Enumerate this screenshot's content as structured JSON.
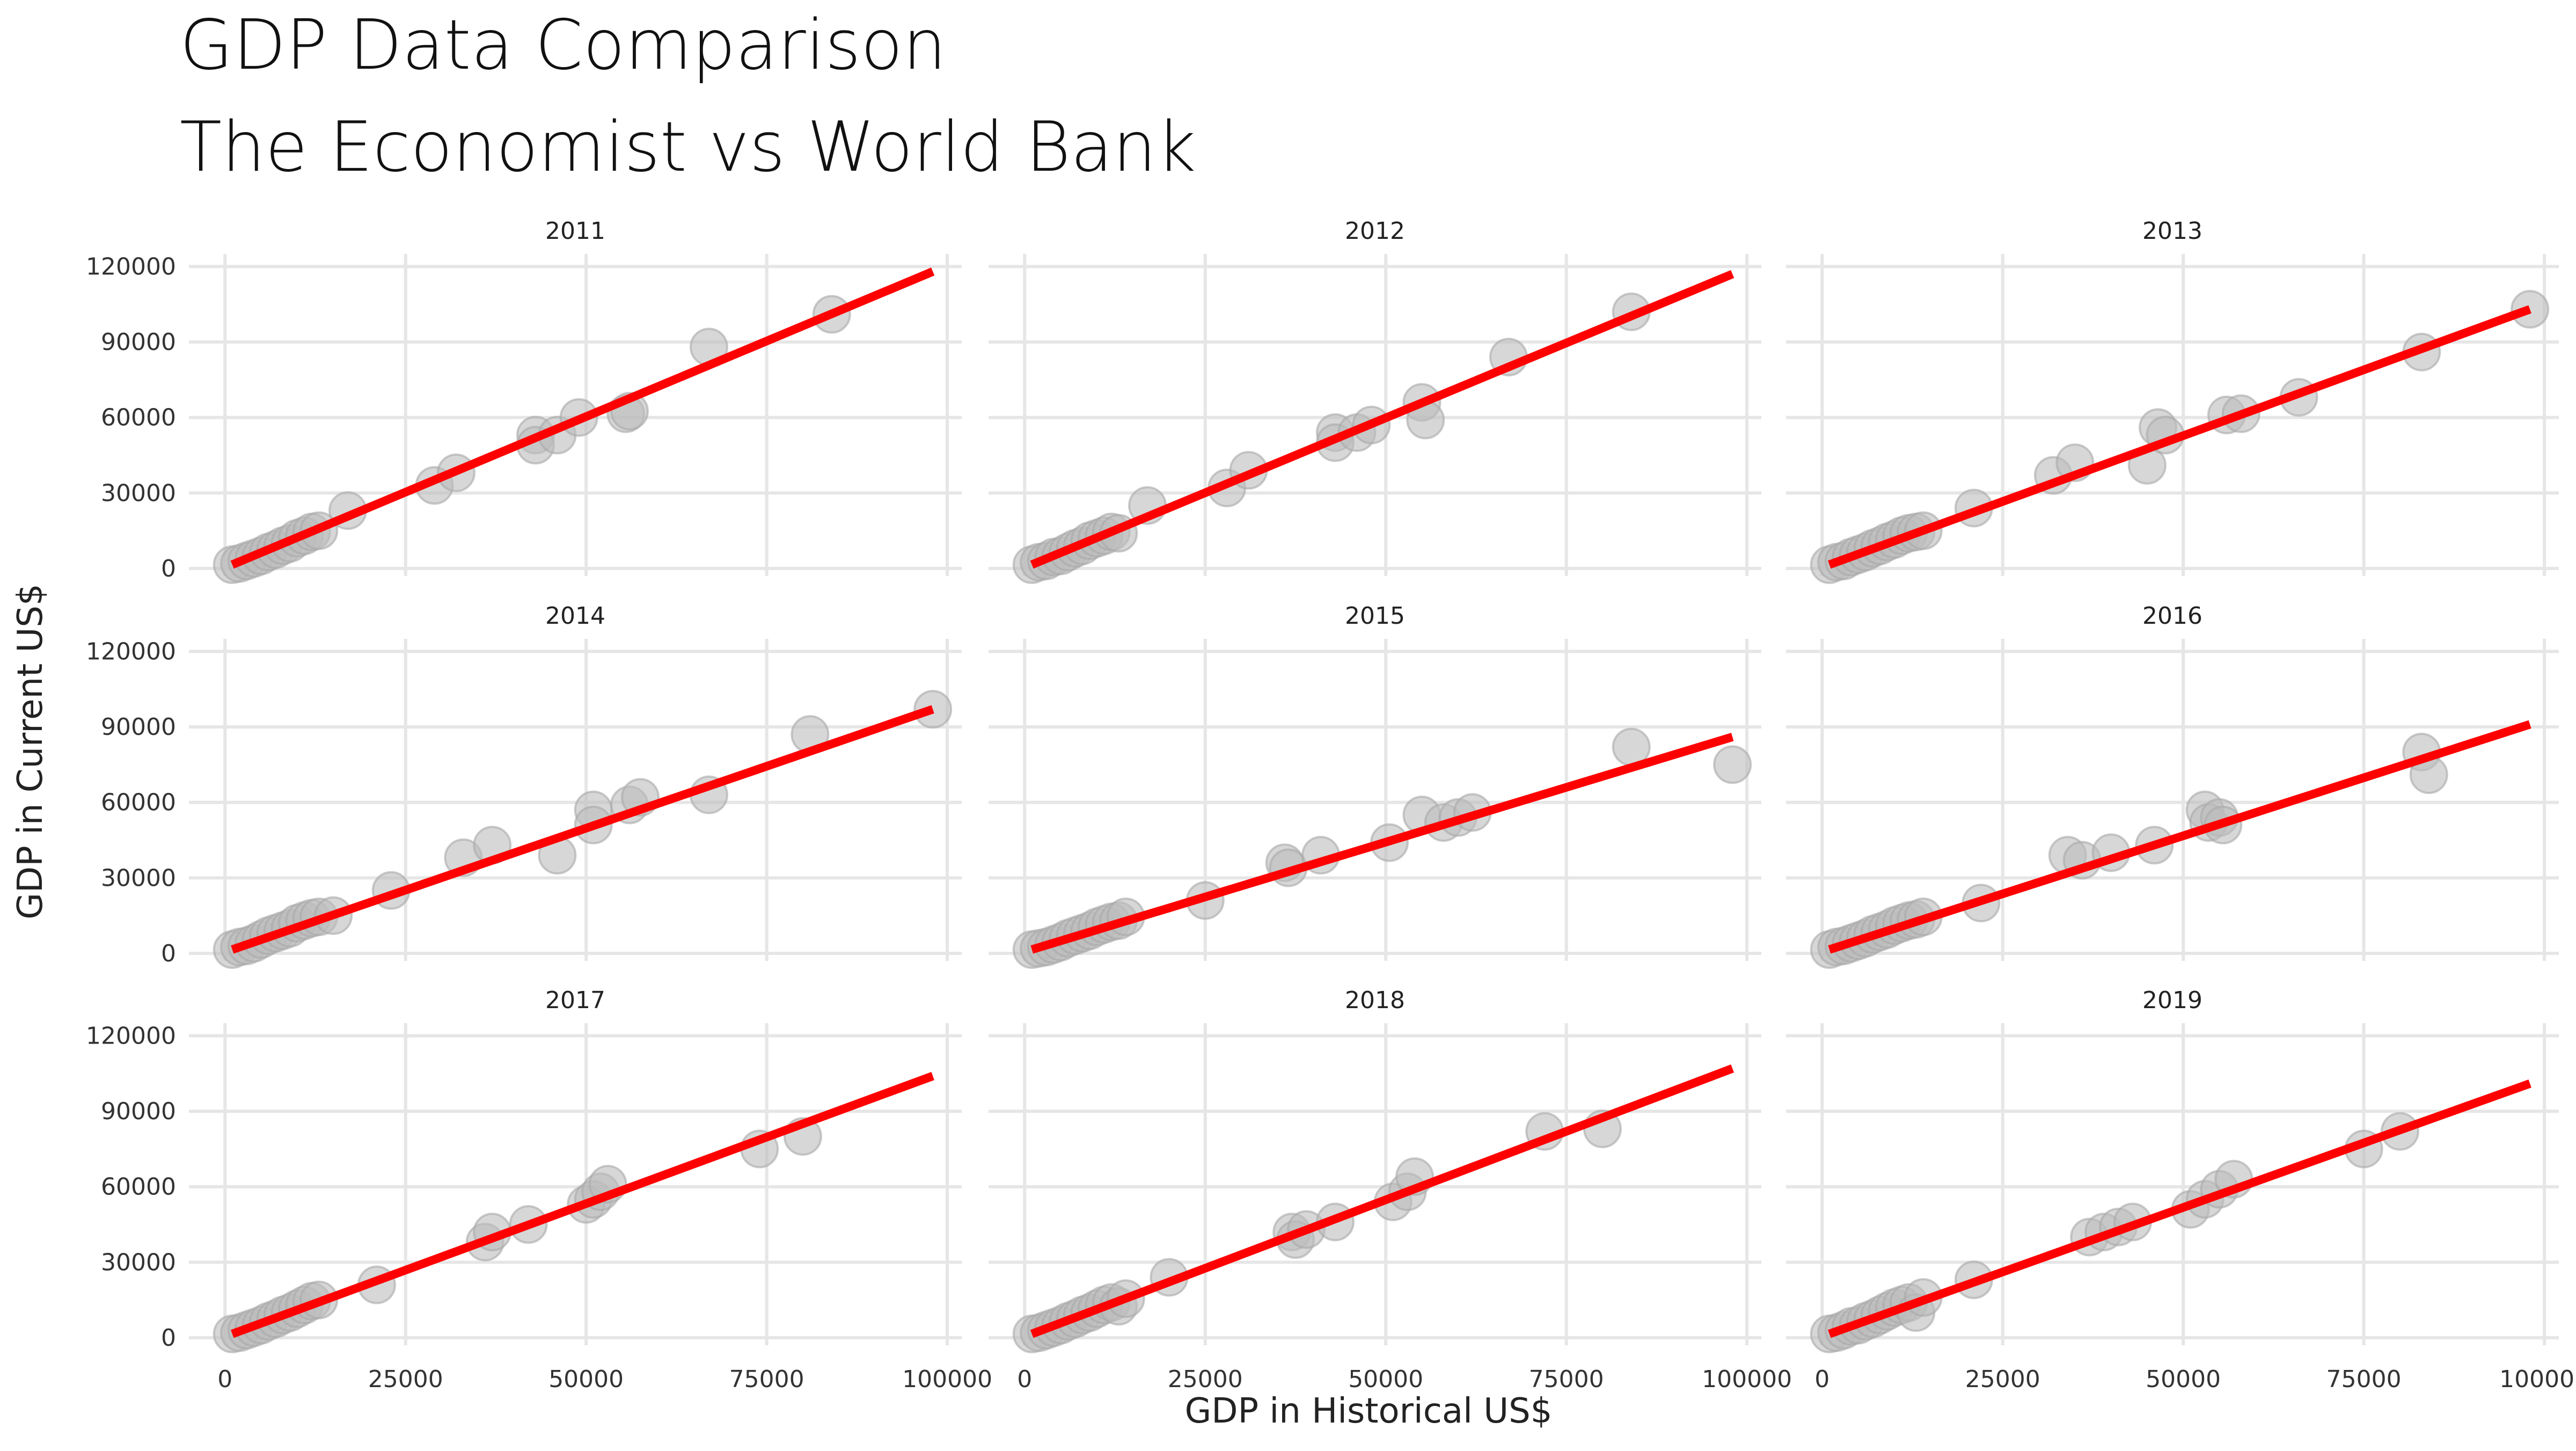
{
  "title": "GDP Data Comparison",
  "subtitle": "The Economist vs World Bank",
  "chart_data": {
    "type": "scatter",
    "title": "GDP Data Comparison",
    "subtitle": "The Economist vs World Bank",
    "xlabel": "GDP in Historical US$",
    "ylabel": "GDP in Current US$",
    "xlim": [
      -5000,
      102000
    ],
    "ylim": [
      -3000,
      125000
    ],
    "x_ticks": [
      0,
      25000,
      50000,
      75000,
      100000
    ],
    "y_ticks": [
      0,
      30000,
      60000,
      90000,
      120000
    ],
    "grid": true,
    "colors": {
      "points": "#bdbdbd",
      "fit_line": "#ff0000",
      "grid": "#e6e6e6"
    },
    "panels": [
      {
        "label": "2011",
        "fit": {
          "x": [
            1000,
            98000
          ],
          "y": [
            1500,
            118000
          ]
        },
        "points": [
          [
            1000,
            1500
          ],
          [
            2000,
            2000
          ],
          [
            3000,
            3000
          ],
          [
            4000,
            4000
          ],
          [
            5000,
            5000
          ],
          [
            6000,
            6500
          ],
          [
            7000,
            7500
          ],
          [
            8000,
            9000
          ],
          [
            9000,
            10000
          ],
          [
            10000,
            12000
          ],
          [
            11000,
            13000
          ],
          [
            12000,
            14500
          ],
          [
            13000,
            15000
          ],
          [
            17000,
            23000
          ],
          [
            29000,
            33000
          ],
          [
            32000,
            38000
          ],
          [
            43000,
            53000
          ],
          [
            43000,
            49000
          ],
          [
            46000,
            53000
          ],
          [
            49000,
            60000
          ],
          [
            55500,
            61500
          ],
          [
            56000,
            62500
          ],
          [
            67000,
            88000
          ],
          [
            84000,
            101000
          ]
        ]
      },
      {
        "label": "2012",
        "fit": {
          "x": [
            1000,
            98000
          ],
          "y": [
            1500,
            117000
          ]
        },
        "points": [
          [
            1000,
            1500
          ],
          [
            2000,
            2500
          ],
          [
            3000,
            3000
          ],
          [
            4000,
            4500
          ],
          [
            5000,
            5000
          ],
          [
            6000,
            6500
          ],
          [
            7000,
            8000
          ],
          [
            8000,
            9000
          ],
          [
            9000,
            11000
          ],
          [
            10000,
            12000
          ],
          [
            11000,
            13000
          ],
          [
            12000,
            14500
          ],
          [
            13000,
            14000
          ],
          [
            17000,
            25000
          ],
          [
            28000,
            32000
          ],
          [
            31000,
            39000
          ],
          [
            43000,
            54000
          ],
          [
            43000,
            50000
          ],
          [
            46000,
            54000
          ],
          [
            48000,
            57000
          ],
          [
            55000,
            66000
          ],
          [
            55500,
            59000
          ],
          [
            67000,
            84000
          ],
          [
            84000,
            102000
          ]
        ]
      },
      {
        "label": "2013",
        "fit": {
          "x": [
            1000,
            98000
          ],
          "y": [
            1500,
            103000
          ]
        },
        "points": [
          [
            1000,
            1500
          ],
          [
            2000,
            2500
          ],
          [
            3000,
            3000
          ],
          [
            4000,
            4500
          ],
          [
            5000,
            5500
          ],
          [
            6000,
            6500
          ],
          [
            7000,
            8000
          ],
          [
            8000,
            9000
          ],
          [
            9000,
            10500
          ],
          [
            10000,
            11500
          ],
          [
            11000,
            13000
          ],
          [
            12000,
            14000
          ],
          [
            13000,
            14500
          ],
          [
            14000,
            15000
          ],
          [
            21000,
            24000
          ],
          [
            32000,
            37000
          ],
          [
            35000,
            42000
          ],
          [
            45000,
            41000
          ],
          [
            46500,
            56000
          ],
          [
            47500,
            53000
          ],
          [
            56000,
            61000
          ],
          [
            58000,
            61500
          ],
          [
            66000,
            68000
          ],
          [
            83000,
            86000
          ],
          [
            98000,
            103000
          ]
        ]
      },
      {
        "label": "2014",
        "fit": {
          "x": [
            1000,
            98000
          ],
          "y": [
            1500,
            97000
          ]
        },
        "points": [
          [
            1000,
            1500
          ],
          [
            2000,
            2500
          ],
          [
            3000,
            3000
          ],
          [
            4000,
            4000
          ],
          [
            5000,
            5500
          ],
          [
            6000,
            7000
          ],
          [
            7000,
            8000
          ],
          [
            8000,
            9000
          ],
          [
            9000,
            10000
          ],
          [
            10000,
            12000
          ],
          [
            11000,
            13000
          ],
          [
            12000,
            14000
          ],
          [
            13000,
            14500
          ],
          [
            15000,
            15000
          ],
          [
            23000,
            25000
          ],
          [
            33000,
            38000
          ],
          [
            37000,
            43000
          ],
          [
            46000,
            39000
          ],
          [
            51000,
            57000
          ],
          [
            51000,
            51000
          ],
          [
            56000,
            59000
          ],
          [
            57500,
            62000
          ],
          [
            67000,
            63000
          ],
          [
            81000,
            87000
          ],
          [
            98000,
            97000
          ]
        ]
      },
      {
        "label": "2015",
        "fit": {
          "x": [
            1000,
            98000
          ],
          "y": [
            1500,
            86000
          ]
        },
        "points": [
          [
            1000,
            1500
          ],
          [
            2000,
            2000
          ],
          [
            3000,
            2500
          ],
          [
            4000,
            3500
          ],
          [
            5000,
            4500
          ],
          [
            6000,
            6000
          ],
          [
            7000,
            7000
          ],
          [
            8000,
            8000
          ],
          [
            9000,
            9000
          ],
          [
            10000,
            10500
          ],
          [
            11000,
            11500
          ],
          [
            12000,
            12500
          ],
          [
            13000,
            13000
          ],
          [
            14000,
            14500
          ],
          [
            25000,
            21000
          ],
          [
            36000,
            36000
          ],
          [
            36500,
            34000
          ],
          [
            41000,
            39000
          ],
          [
            50500,
            44000
          ],
          [
            55000,
            55000
          ],
          [
            58000,
            52000
          ],
          [
            60000,
            54000
          ],
          [
            62000,
            56000
          ],
          [
            84000,
            82000
          ],
          [
            98000,
            75000
          ]
        ]
      },
      {
        "label": "2016",
        "fit": {
          "x": [
            1000,
            98000
          ],
          "y": [
            1500,
            91000
          ]
        },
        "points": [
          [
            1000,
            1500
          ],
          [
            2000,
            2500
          ],
          [
            3000,
            3000
          ],
          [
            4000,
            4000
          ],
          [
            5000,
            5000
          ],
          [
            6000,
            6000
          ],
          [
            7000,
            7500
          ],
          [
            8000,
            8500
          ],
          [
            9000,
            9500
          ],
          [
            10000,
            11000
          ],
          [
            11000,
            12000
          ],
          [
            12000,
            13000
          ],
          [
            13000,
            13500
          ],
          [
            14000,
            14500
          ],
          [
            22000,
            20000
          ],
          [
            34000,
            39000
          ],
          [
            36000,
            37000
          ],
          [
            40000,
            40000
          ],
          [
            46000,
            43000
          ],
          [
            53000,
            57000
          ],
          [
            53500,
            52000
          ],
          [
            55000,
            54000
          ],
          [
            55500,
            51000
          ],
          [
            83000,
            80000
          ],
          [
            84000,
            71000
          ]
        ]
      },
      {
        "label": "2017",
        "fit": {
          "x": [
            1000,
            98000
          ],
          "y": [
            1500,
            104000
          ]
        },
        "points": [
          [
            1000,
            1500
          ],
          [
            2000,
            2000
          ],
          [
            3000,
            3000
          ],
          [
            4000,
            4000
          ],
          [
            5000,
            5000
          ],
          [
            6000,
            6500
          ],
          [
            7000,
            7500
          ],
          [
            8000,
            9000
          ],
          [
            9000,
            10000
          ],
          [
            10000,
            11500
          ],
          [
            11000,
            13000
          ],
          [
            12000,
            14500
          ],
          [
            13000,
            15000
          ],
          [
            21000,
            21000
          ],
          [
            36000,
            38000
          ],
          [
            37000,
            42000
          ],
          [
            42000,
            45000
          ],
          [
            50000,
            53000
          ],
          [
            51000,
            55000
          ],
          [
            52000,
            58000
          ],
          [
            53000,
            61000
          ],
          [
            74000,
            75000
          ],
          [
            80000,
            80000
          ]
        ]
      },
      {
        "label": "2018",
        "fit": {
          "x": [
            1000,
            98000
          ],
          "y": [
            1500,
            107000
          ]
        },
        "points": [
          [
            1000,
            1500
          ],
          [
            2000,
            2000
          ],
          [
            3000,
            3000
          ],
          [
            4000,
            4000
          ],
          [
            5000,
            5000
          ],
          [
            6000,
            6500
          ],
          [
            7000,
            7500
          ],
          [
            8000,
            9000
          ],
          [
            9000,
            10000
          ],
          [
            10000,
            11500
          ],
          [
            11000,
            13000
          ],
          [
            12000,
            14000
          ],
          [
            13000,
            12500
          ],
          [
            14000,
            15500
          ],
          [
            20000,
            24000
          ],
          [
            37000,
            42000
          ],
          [
            37500,
            39000
          ],
          [
            39000,
            43000
          ],
          [
            43000,
            46000
          ],
          [
            51000,
            54000
          ],
          [
            53000,
            58000
          ],
          [
            54000,
            64000
          ],
          [
            72000,
            82000
          ],
          [
            80000,
            83000
          ]
        ]
      },
      {
        "label": "2019",
        "fit": {
          "x": [
            1000,
            98000
          ],
          "y": [
            1500,
            101000
          ]
        },
        "points": [
          [
            1000,
            1500
          ],
          [
            2000,
            2000
          ],
          [
            3000,
            3000
          ],
          [
            4000,
            4500
          ],
          [
            5000,
            5000
          ],
          [
            6000,
            6500
          ],
          [
            7000,
            7500
          ],
          [
            8000,
            9000
          ],
          [
            9000,
            10500
          ],
          [
            10000,
            12000
          ],
          [
            11000,
            13000
          ],
          [
            12000,
            14000
          ],
          [
            13000,
            10000
          ],
          [
            14000,
            16000
          ],
          [
            21000,
            23000
          ],
          [
            37000,
            40000
          ],
          [
            39000,
            42000
          ],
          [
            41000,
            44000
          ],
          [
            43000,
            46000
          ],
          [
            51000,
            51000
          ],
          [
            53000,
            55000
          ],
          [
            55000,
            59000
          ],
          [
            57000,
            63000
          ],
          [
            75000,
            75000
          ],
          [
            80000,
            82000
          ]
        ]
      }
    ]
  }
}
